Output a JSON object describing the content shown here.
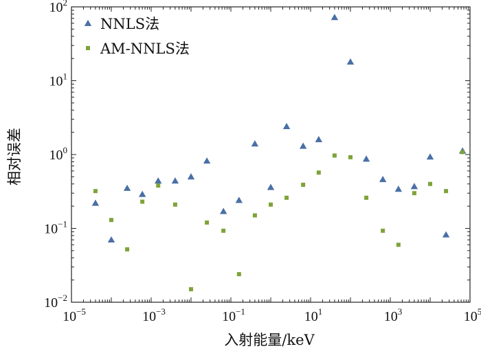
{
  "chart_data": {
    "type": "scatter",
    "xlabel": "入射能量/keV",
    "ylabel": "相对误差",
    "x_scale": "log",
    "y_scale": "log",
    "xlim": [
      1e-05,
      100000.0
    ],
    "ylim": [
      0.01,
      100
    ],
    "x_ticks": [
      {
        "base": "10",
        "exp": "−5"
      },
      {
        "base": "10",
        "exp": "−3"
      },
      {
        "base": "10",
        "exp": "−1"
      },
      {
        "base": "10",
        "exp": "1"
      },
      {
        "base": "10",
        "exp": "3"
      },
      {
        "base": "10",
        "exp": "5"
      }
    ],
    "y_ticks": [
      {
        "base": "10",
        "exp": "−2"
      },
      {
        "base": "10",
        "exp": "−1"
      },
      {
        "base": "10",
        "exp": "0"
      },
      {
        "base": "10",
        "exp": "1"
      },
      {
        "base": "10",
        "exp": "2"
      }
    ],
    "grid": false,
    "legend_position": "top-left",
    "series": [
      {
        "name": "NNLS法",
        "marker": "triangle",
        "color": "#4a6fa5",
        "x": [
          4e-05,
          0.0001,
          0.00025,
          0.0006,
          0.0015,
          0.004,
          0.01,
          0.025,
          0.065,
          0.16,
          0.4,
          1,
          2.5,
          6.5,
          16,
          40,
          100,
          250,
          650,
          1600,
          4000,
          10000,
          25000,
          65000
        ],
        "y": [
          0.22,
          0.07,
          0.35,
          0.29,
          0.44,
          0.44,
          0.5,
          0.82,
          0.17,
          0.24,
          1.4,
          0.36,
          2.4,
          1.3,
          1.6,
          72,
          18,
          0.87,
          0.46,
          0.34,
          0.37,
          0.93,
          0.082,
          1.12
        ]
      },
      {
        "name": "AM-NNLS法",
        "marker": "square",
        "color": "#7ea33a",
        "x": [
          4e-05,
          0.0001,
          0.00025,
          0.0006,
          0.0015,
          0.004,
          0.01,
          0.025,
          0.065,
          0.16,
          0.4,
          1,
          2.5,
          6.5,
          16,
          40,
          100,
          250,
          650,
          1600,
          4000,
          10000,
          25000,
          65000
        ],
        "y": [
          0.32,
          0.13,
          0.052,
          0.23,
          0.38,
          0.21,
          0.015,
          0.12,
          0.093,
          0.024,
          0.15,
          0.21,
          0.26,
          0.39,
          0.57,
          0.97,
          0.92,
          0.26,
          0.093,
          0.06,
          0.3,
          0.4,
          0.32,
          1.08
        ]
      }
    ]
  }
}
